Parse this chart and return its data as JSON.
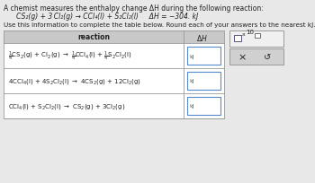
{
  "title_line1": "A chemist measures the enthalpy change ΔH during the following reaction:",
  "reaction_main": "CS₂(g) + 3 Cl₂(g) → CCl₄(l) + S₂Cl₂(l)     ΔH = −304. kJ",
  "instruction": "Use this information to complete the table below. Round each of your answers to the nearest kJ.",
  "col_reaction": "reaction",
  "col_dH": "ΔH",
  "row1": "\\frac{1}{4}CS\\textsubscript{2}(g) + Cl\\textsubscript{2}(g) \\rightarrow \\frac{1}{4}CCl\\textsubscript{4}(l) + \\frac{1}{4}S\\textsubscript{2}Cl\\textsubscript{2}(l)",
  "row2": "4CCl\\textsubscript{4}(l) + 4S\\textsubscript{2}Cl\\textsubscript{2}(l) \\rightarrow 4CS\\textsubscript{2}(g) + 12Cl\\textsubscript{2}(g)",
  "row3": "CCl\\textsubscript{4}(l) + S\\textsubscript{2}Cl\\textsubscript{2}(l) \\rightarrow CS\\textsubscript{2}(g) + 3Cl\\textsubscript{2}(g)",
  "bg_color": "#e8e8e8",
  "table_bg": "#ffffff",
  "header_bg": "#c8c8c8",
  "row_alt_bg": "#f5f5f5",
  "border_color": "#999999",
  "text_color": "#222222",
  "input_box_color": "#ffffff",
  "side_top_bg": "#f0f0f0",
  "side_btn_bg": "#d0d0d0",
  "font_size_header_text": 5.5,
  "font_size_title": 5.5,
  "font_size_reaction": 5.0,
  "font_size_dh_label": 5.5,
  "font_size_side": 6.0
}
